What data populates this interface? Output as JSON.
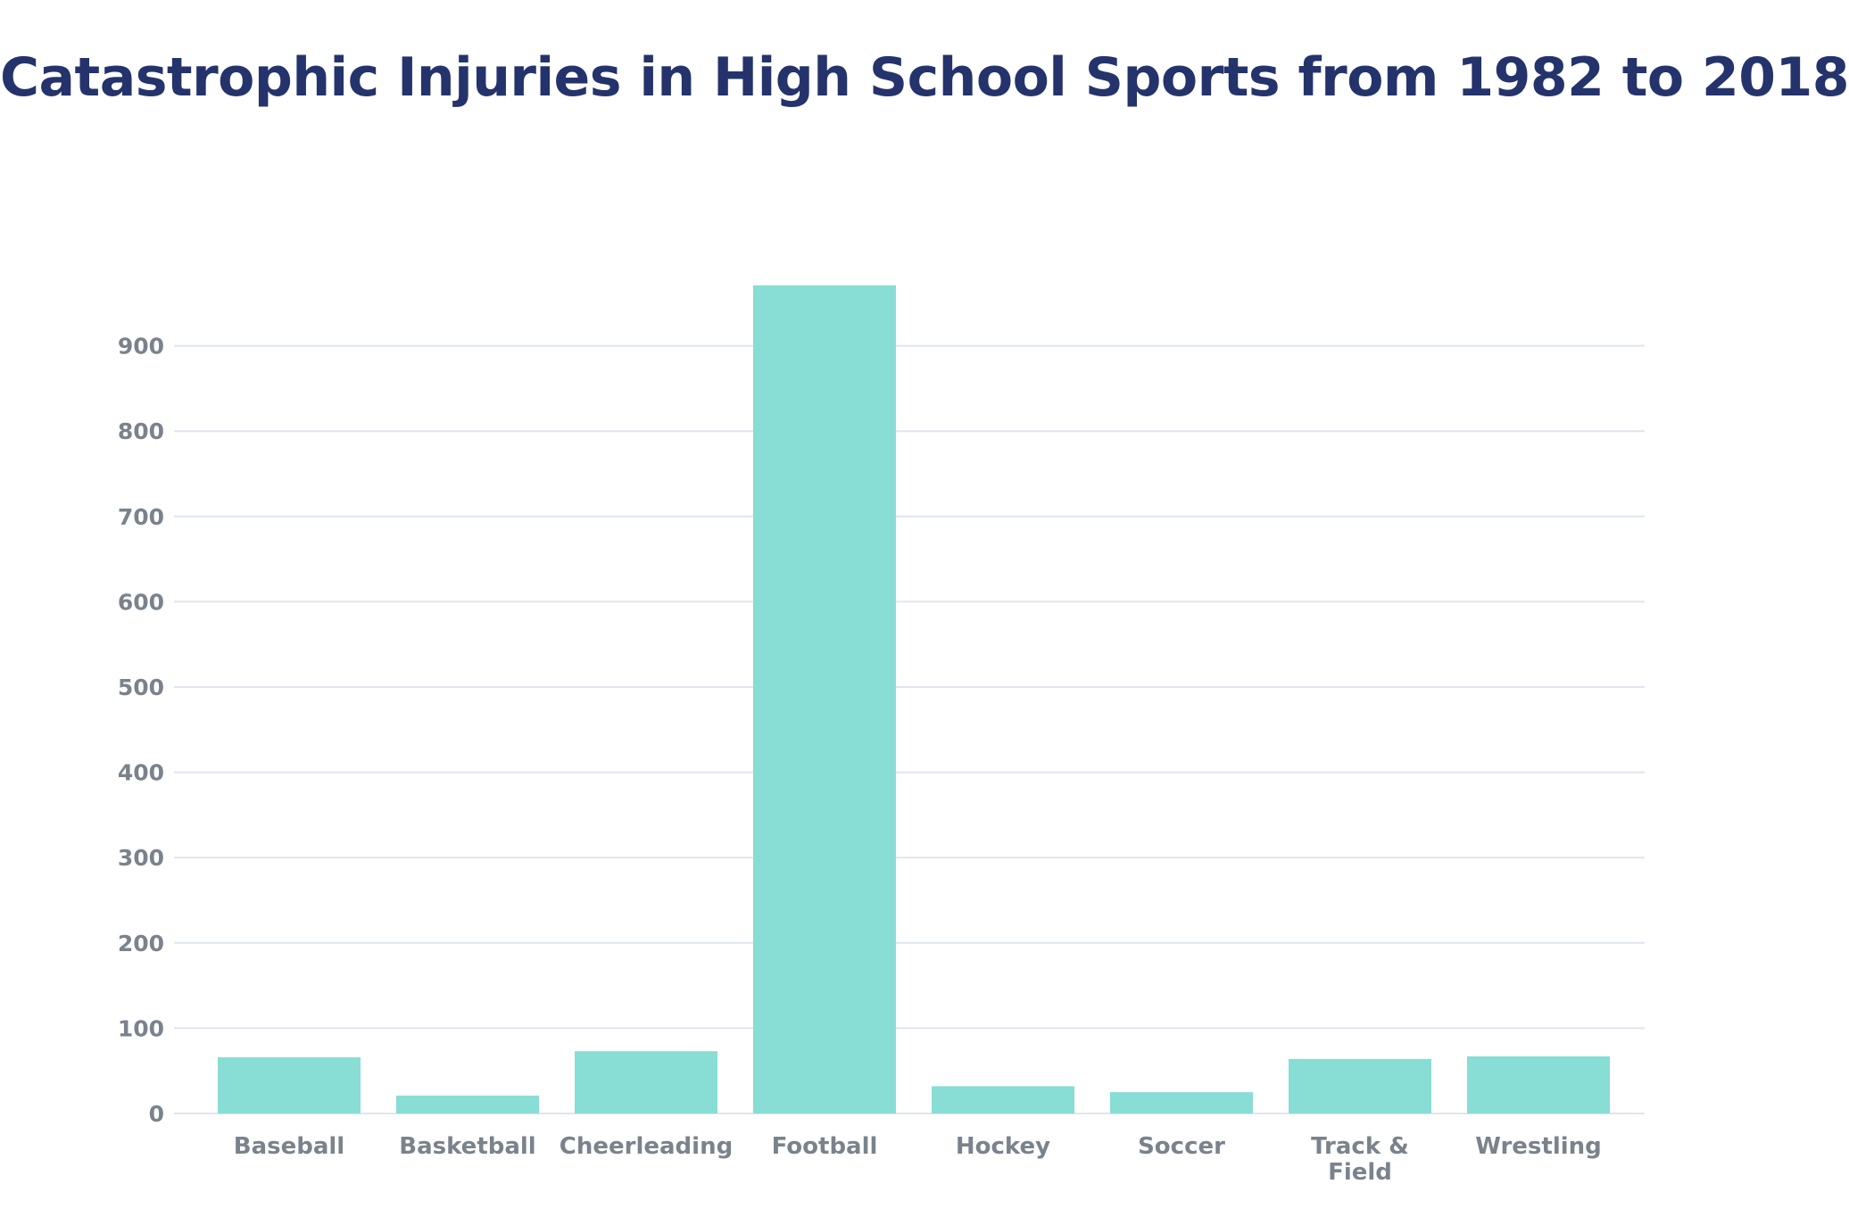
{
  "chart_data": {
    "type": "bar",
    "title": "Catastrophic Injuries in High School Sports from 1982 to 2018",
    "xlabel": "",
    "ylabel": "",
    "categories": [
      "Baseball",
      "Basketball",
      "Cheerleading",
      "Football",
      "Hockey",
      "Soccer",
      "Track & Field",
      "Wrestling"
    ],
    "values": [
      66,
      21,
      73,
      971,
      32,
      25,
      64,
      67
    ],
    "ylim": [
      0,
      980
    ],
    "yticks": [
      0,
      100,
      200,
      300,
      400,
      500,
      600,
      700,
      800,
      900
    ],
    "grid": true,
    "legend": "none"
  },
  "colors": {
    "title": "#24336b",
    "bar": "#88ddd4",
    "gridline": "#dfe5ee",
    "axis_text": "#7a838c"
  }
}
